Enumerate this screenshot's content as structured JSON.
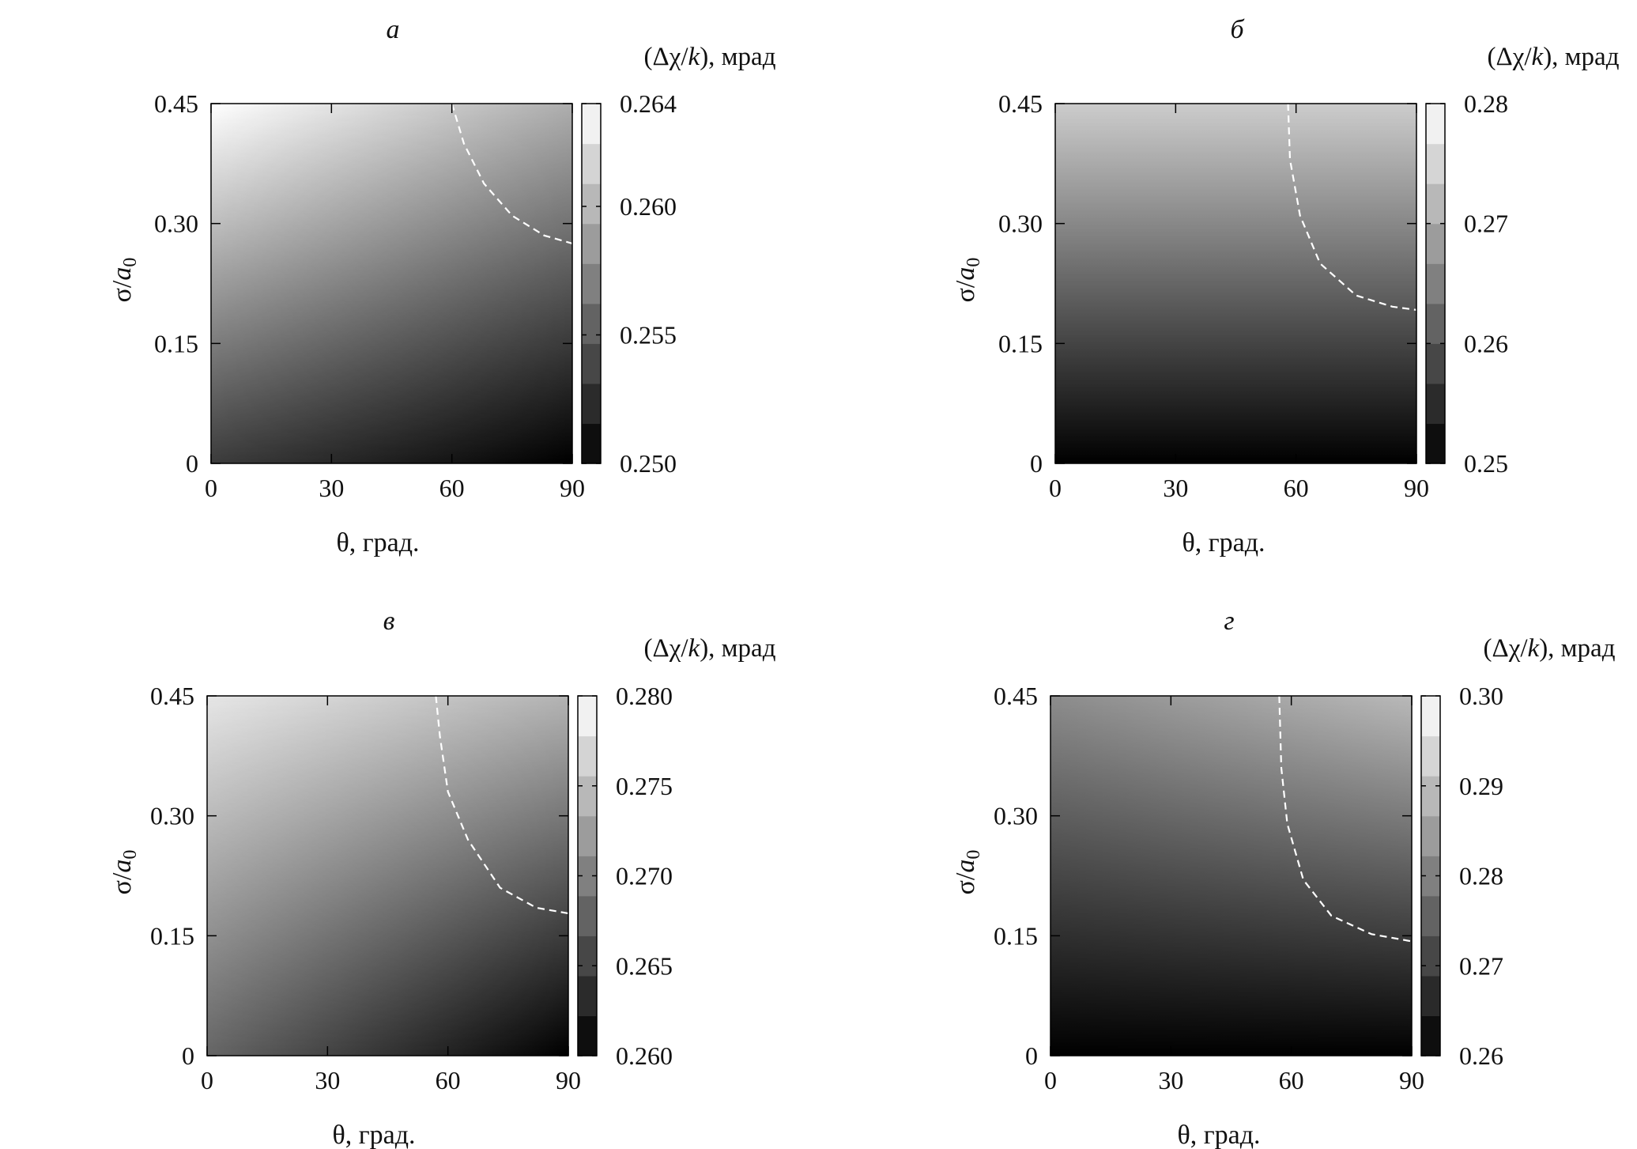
{
  "chart_data": [
    {
      "type": "heatmap",
      "panel_label": "а",
      "colorbar_title": "(Δχ/k), мрад",
      "colorbar_title_parts": {
        "prefix": "(Δχ/",
        "var": "k",
        "suffix": "), мрад"
      },
      "xlabel": "θ, град.",
      "ylabel_parts": {
        "sigma": "σ/",
        "a": "a",
        "sub": "0"
      },
      "x_ticks": [
        "0",
        "30",
        "60",
        "90"
      ],
      "y_ticks": [
        "0",
        "0.15",
        "0.30",
        "0.45"
      ],
      "xlim": [
        0,
        90
      ],
      "ylim": [
        0,
        0.45
      ],
      "colorbar_ticks": [
        "0.250",
        "0.255",
        "0.260",
        "0.264"
      ],
      "colorbar_range": [
        0.25,
        0.264
      ],
      "colormap": "grayscale, black=min, white=max",
      "field": {
        "min": 0.25,
        "max": 0.264,
        "corner_values": {
          "x0_y0": 0.2533,
          "x90_y0": 0.25,
          "x0_y045": 0.264,
          "x90_y045": 0.2595
        }
      },
      "dashed_curve": {
        "color": "#ffffff",
        "points": [
          [
            60,
            0.45
          ],
          [
            63,
            0.4
          ],
          [
            68,
            0.35
          ],
          [
            75,
            0.31
          ],
          [
            83,
            0.285
          ],
          [
            90,
            0.275
          ]
        ]
      }
    },
    {
      "type": "heatmap",
      "panel_label": "б",
      "colorbar_title": "(Δχ/k), мрад",
      "colorbar_title_parts": {
        "prefix": "(Δχ/",
        "var": "k",
        "suffix": "), мрад"
      },
      "xlabel": "θ, град.",
      "ylabel_parts": {
        "sigma": "σ/",
        "a": "a",
        "sub": "0"
      },
      "x_ticks": [
        "0",
        "30",
        "60",
        "90"
      ],
      "y_ticks": [
        "0",
        "0.15",
        "0.30",
        "0.45"
      ],
      "xlim": [
        0,
        90
      ],
      "ylim": [
        0,
        0.45
      ],
      "colorbar_ticks": [
        "0.25",
        "0.26",
        "0.27",
        "0.28"
      ],
      "colorbar_range": [
        0.25,
        0.28
      ],
      "colormap": "grayscale, black=min, white=max",
      "field": {
        "min": 0.25,
        "max": 0.28,
        "corner_values": {
          "x0_y0": 0.25,
          "x90_y0": 0.25,
          "x0_y045": 0.274,
          "x90_y045": 0.274
        }
      },
      "dashed_curve": {
        "color": "#ffffff",
        "points": [
          [
            58,
            0.45
          ],
          [
            58.5,
            0.38
          ],
          [
            61,
            0.31
          ],
          [
            66,
            0.25
          ],
          [
            75,
            0.21
          ],
          [
            84,
            0.196
          ],
          [
            90,
            0.192
          ]
        ]
      }
    },
    {
      "type": "heatmap",
      "panel_label": "в",
      "colorbar_title": "(Δχ/k), мрад",
      "colorbar_title_parts": {
        "prefix": "(Δχ/",
        "var": "k",
        "suffix": "), мрад"
      },
      "xlabel": "θ, град.",
      "ylabel_parts": {
        "sigma": "σ/",
        "a": "a",
        "sub": "0"
      },
      "x_ticks": [
        "0",
        "30",
        "60",
        "90"
      ],
      "y_ticks": [
        "0",
        "0.15",
        "0.30",
        "0.45"
      ],
      "xlim": [
        0,
        90
      ],
      "ylim": [
        0,
        0.45
      ],
      "colorbar_ticks": [
        "0.260",
        "0.265",
        "0.270",
        "0.275",
        "0.280"
      ],
      "colorbar_range": [
        0.26,
        0.28
      ],
      "colormap": "grayscale, black=min, white=max",
      "field": {
        "min": 0.26,
        "max": 0.28,
        "corner_values": {
          "x0_y0": 0.268,
          "x90_y0": 0.26,
          "x0_y045": 0.278,
          "x90_y045": 0.274
        }
      },
      "dashed_curve": {
        "color": "#ffffff",
        "points": [
          [
            57,
            0.45
          ],
          [
            58,
            0.4
          ],
          [
            60,
            0.33
          ],
          [
            65,
            0.27
          ],
          [
            73,
            0.21
          ],
          [
            82,
            0.185
          ],
          [
            90,
            0.178
          ]
        ]
      }
    },
    {
      "type": "heatmap",
      "panel_label": "г",
      "colorbar_title": "(Δχ/k), мрад",
      "colorbar_title_parts": {
        "prefix": "(Δχ/",
        "var": "k",
        "suffix": "), мрад"
      },
      "xlabel": "θ, град.",
      "ylabel_parts": {
        "sigma": "σ/",
        "a": "a",
        "sub": "0"
      },
      "x_ticks": [
        "0",
        "30",
        "60",
        "90"
      ],
      "y_ticks": [
        "0",
        "0.15",
        "0.30",
        "0.45"
      ],
      "xlim": [
        0,
        90
      ],
      "ylim": [
        0,
        0.45
      ],
      "colorbar_ticks": [
        "0.26",
        "0.27",
        "0.28",
        "0.29",
        "0.30"
      ],
      "colorbar_range": [
        0.26,
        0.3
      ],
      "colormap": "grayscale, black=min, white=max",
      "field": {
        "min": 0.26,
        "max": 0.3,
        "corner_values": {
          "x0_y0": 0.26,
          "x90_y0": 0.26,
          "x0_y045": 0.282,
          "x90_y045": 0.289
        }
      },
      "dashed_curve": {
        "color": "#ffffff",
        "points": [
          [
            57,
            0.45
          ],
          [
            57.5,
            0.36
          ],
          [
            59,
            0.29
          ],
          [
            63,
            0.22
          ],
          [
            70,
            0.175
          ],
          [
            80,
            0.152
          ],
          [
            90,
            0.143
          ]
        ]
      }
    }
  ]
}
